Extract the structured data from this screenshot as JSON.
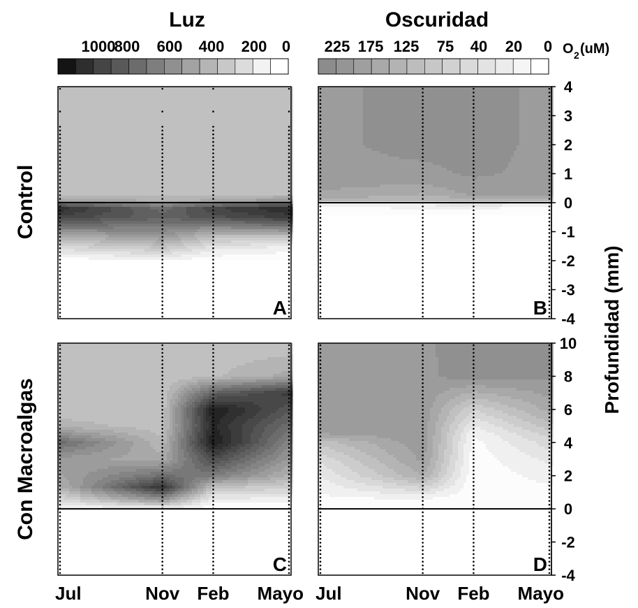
{
  "panel_titles": {
    "light": "Luz",
    "dark": "Oscuridad"
  },
  "row_labels": {
    "top": "Control",
    "bottom": "Con Macroalgas"
  },
  "unit_label": {
    "main": "O",
    "sub": "2",
    "rest": "(uM)"
  },
  "y_axis_label": "Profundidad (mm)",
  "colorbars": {
    "light": {
      "tick_labels": [
        "1000",
        "800",
        "600",
        "400",
        "200",
        "0"
      ],
      "colors": [
        "#141414",
        "#2e2e2e",
        "#454545",
        "#595959",
        "#6c6c6c",
        "#7e7e7e",
        "#909090",
        "#a3a3a3",
        "#b5b5b5",
        "#c8c8c8",
        "#dcdcdc",
        "#f2f2f2",
        "#ffffff"
      ]
    },
    "dark": {
      "tick_labels": [
        "225",
        "175",
        "125",
        "75",
        "40",
        "20",
        "0"
      ],
      "colors": [
        "#8c8c8c",
        "#959595",
        "#9f9f9f",
        "#a9a9a9",
        "#b3b3b3",
        "#bdbdbd",
        "#c7c7c7",
        "#d1d1d1",
        "#dadada",
        "#e3e3e3",
        "#ececec",
        "#f5f5f5",
        "#ffffff"
      ]
    }
  },
  "chart_data": [
    {
      "type": "heatmap",
      "panel": "A",
      "title": "Luz",
      "row": "Control",
      "x_categories": [
        "Jul",
        "Nov",
        "Feb",
        "Mayo"
      ],
      "ylabel": "Profundidad (mm)",
      "ylim": [
        -4,
        4
      ],
      "y_ticks": [
        4,
        3,
        2,
        1,
        0,
        -1,
        -2,
        -3,
        -4
      ],
      "value_label": "O2 (uM)",
      "colorbar_range": [
        0,
        1000
      ],
      "profiles": {
        "depths_mm": [
          2.5,
          0.3,
          0.1,
          -0.2,
          -0.5,
          -0.8,
          -1.2,
          -1.6,
          -2.0
        ],
        "Jul": [
          250,
          260,
          380,
          880,
          780,
          600,
          320,
          140,
          0
        ],
        "Nov": [
          250,
          260,
          320,
          620,
          650,
          550,
          420,
          220,
          40
        ],
        "Feb": [
          250,
          260,
          340,
          780,
          720,
          520,
          260,
          100,
          0
        ],
        "Mayo": [
          250,
          270,
          420,
          900,
          820,
          600,
          220,
          50,
          0
        ]
      }
    },
    {
      "type": "heatmap",
      "panel": "B",
      "title": "Oscuridad",
      "row": "Control",
      "x_categories": [
        "Jul",
        "Nov",
        "Feb",
        "Mayo"
      ],
      "ylabel": "Profundidad (mm)",
      "ylim": [
        -4,
        4
      ],
      "y_ticks": [
        4,
        3,
        2,
        1,
        0,
        -1,
        -2,
        -3,
        -4
      ],
      "value_label": "O2 (uM)",
      "colorbar_range": [
        0,
        225
      ],
      "profiles": {
        "depths_mm": [
          4.0,
          2.0,
          1.0,
          0.6,
          0.3,
          0.1,
          0.0,
          -0.2,
          -0.4
        ],
        "Jul": [
          200,
          200,
          200,
          190,
          180,
          160,
          60,
          10,
          0
        ],
        "Nov": [
          215,
          215,
          200,
          180,
          160,
          140,
          60,
          20,
          0
        ],
        "Feb": [
          215,
          215,
          210,
          200,
          190,
          150,
          70,
          20,
          0
        ],
        "Mayo": [
          200,
          200,
          200,
          195,
          185,
          160,
          60,
          10,
          0
        ]
      }
    },
    {
      "type": "heatmap",
      "panel": "C",
      "title": "Luz",
      "row": "Con Macroalgas",
      "x_categories": [
        "Jul",
        "Nov",
        "Feb",
        "Mayo"
      ],
      "ylabel": "Profundidad (mm)",
      "ylim": [
        -4,
        10
      ],
      "y_ticks": [
        10,
        8,
        6,
        4,
        2,
        0,
        -2,
        -4
      ],
      "value_label": "O2 (uM)",
      "colorbar_range": [
        0,
        1000
      ],
      "profiles": {
        "depths_mm": [
          10,
          8,
          7,
          6,
          5,
          4,
          3,
          2,
          1.3,
          0.5,
          0
        ],
        "Jul": [
          250,
          250,
          250,
          250,
          320,
          620,
          420,
          380,
          320,
          140,
          20
        ],
        "Nov": [
          250,
          250,
          250,
          250,
          260,
          300,
          360,
          600,
          850,
          420,
          40
        ],
        "Feb": [
          250,
          280,
          650,
          950,
          900,
          950,
          750,
          550,
          260,
          60,
          0
        ],
        "Mayo": [
          250,
          360,
          820,
          700,
          600,
          500,
          420,
          320,
          200,
          60,
          0
        ]
      }
    },
    {
      "type": "heatmap",
      "panel": "D",
      "title": "Oscuridad",
      "row": "Con Macroalgas",
      "x_categories": [
        "Jul",
        "Nov",
        "Feb",
        "Mayo"
      ],
      "ylabel": "Profundidad (mm)",
      "ylim": [
        -4,
        10
      ],
      "y_ticks": [
        10,
        8,
        6,
        4,
        2,
        0,
        -2,
        -4
      ],
      "value_label": "O2 (uM)",
      "colorbar_range": [
        0,
        225
      ],
      "profiles": {
        "depths_mm": [
          10,
          8,
          6,
          5,
          4.5,
          4,
          3,
          2,
          1,
          0.5,
          0
        ],
        "Jul": [
          200,
          200,
          200,
          200,
          180,
          120,
          70,
          40,
          20,
          10,
          0
        ],
        "Nov": [
          200,
          200,
          200,
          200,
          200,
          200,
          190,
          160,
          60,
          10,
          0
        ],
        "Feb": [
          225,
          220,
          90,
          40,
          20,
          10,
          5,
          0,
          0,
          0,
          0
        ],
        "Mayo": [
          220,
          210,
          170,
          130,
          100,
          80,
          50,
          30,
          10,
          5,
          0
        ]
      }
    }
  ]
}
